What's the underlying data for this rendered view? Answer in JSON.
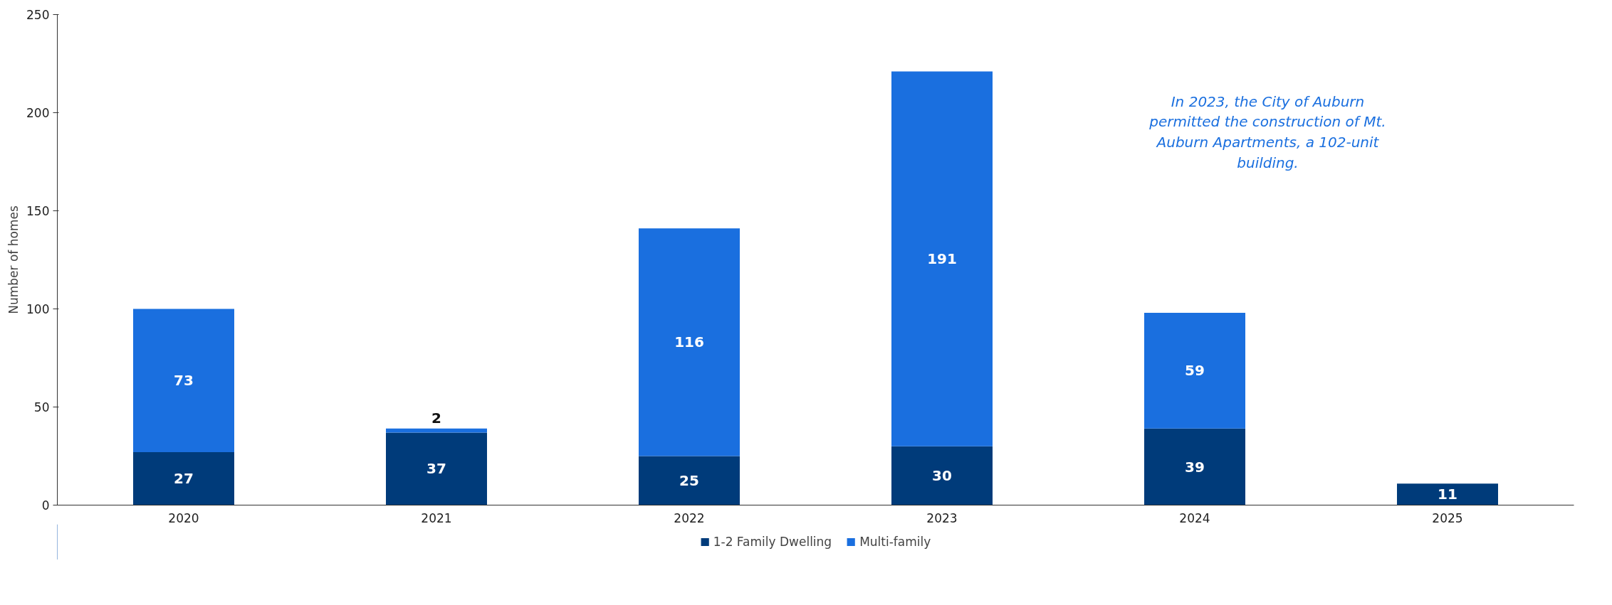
{
  "chart_data": {
    "type": "bar",
    "stacked": true,
    "ylabel": "Number of homes",
    "categories": [
      "2020",
      "2021",
      "2022",
      "2023",
      "2024",
      "2025"
    ],
    "series": [
      {
        "name": "1-2 Family Dwelling",
        "color": "#003b7a",
        "values": [
          27,
          37,
          25,
          30,
          39,
          11
        ]
      },
      {
        "name": "Multi-family",
        "color": "#1a6fdf",
        "values": [
          73,
          2,
          116,
          191,
          59,
          null
        ]
      }
    ],
    "ylim": [
      0,
      250
    ],
    "yticks": [
      0,
      50,
      100,
      150,
      200,
      250
    ],
    "grid": false,
    "legend": "bottom",
    "data_labels": true,
    "annotations": [
      "In 2023, the City of Auburn permitted the construction of Mt. Auburn Apartments, a 102-unit building."
    ]
  }
}
